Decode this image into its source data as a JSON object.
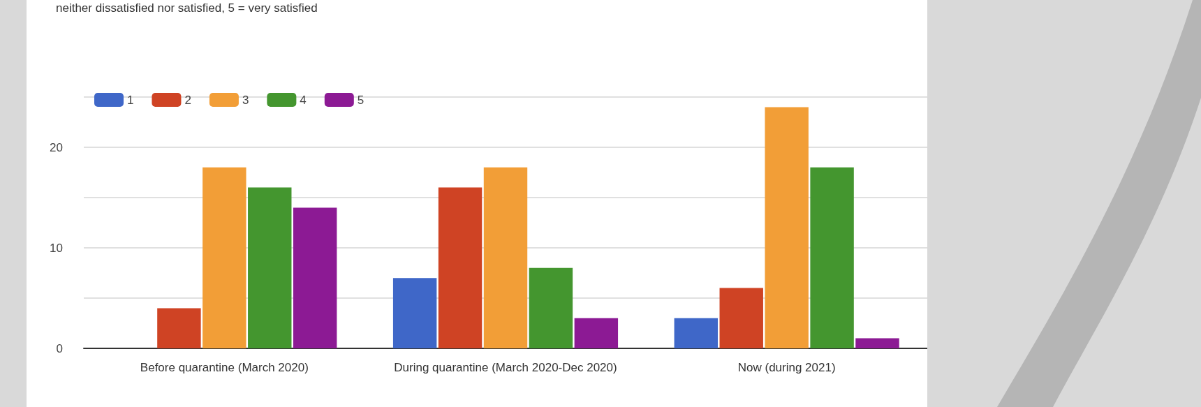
{
  "chart_data": {
    "type": "bar",
    "subtitle": "neither dissatisfied nor satisfied, 5 = very satisfied",
    "categories": [
      "Before quarantine (March 2020)",
      "During quarantine (March 2020-Dec 2020)",
      "Now (during 2021)"
    ],
    "series": [
      {
        "name": "1",
        "color": "#3f67c8",
        "values": [
          0,
          7,
          3
        ]
      },
      {
        "name": "2",
        "color": "#cf4324",
        "values": [
          4,
          16,
          6
        ]
      },
      {
        "name": "3",
        "color": "#f29e37",
        "values": [
          18,
          18,
          24
        ]
      },
      {
        "name": "4",
        "color": "#44962f",
        "values": [
          16,
          8,
          18
        ]
      },
      {
        "name": "5",
        "color": "#8c1a94",
        "values": [
          14,
          3,
          1
        ]
      }
    ],
    "ylim": [
      0,
      25
    ],
    "yticks": [
      0,
      {
        "value": 5,
        "label": null
      },
      10,
      {
        "value": 15,
        "label": null
      },
      20,
      {
        "value": 25,
        "label": null
      }
    ],
    "grid": "y",
    "legend": "top left"
  }
}
